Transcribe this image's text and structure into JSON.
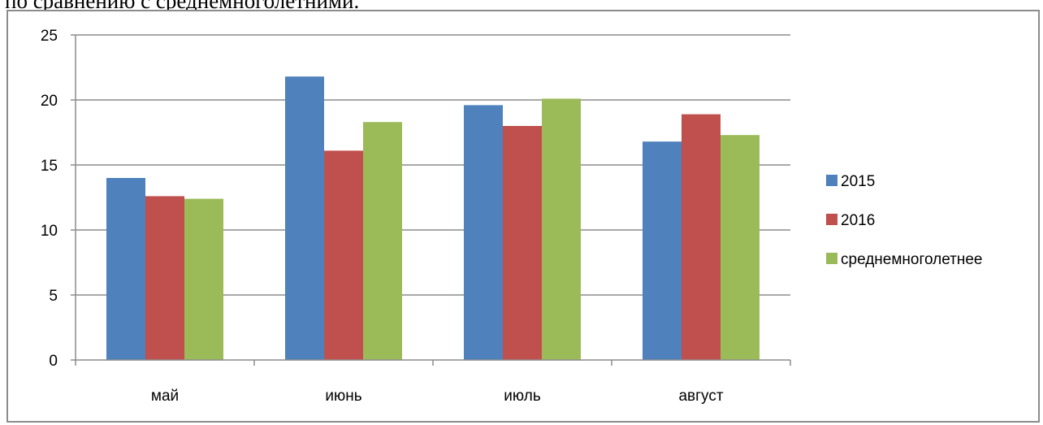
{
  "caption_fragment": "по сравнению с среднемноголетними.",
  "chart_data": {
    "type": "bar",
    "title": "",
    "xlabel": "",
    "ylabel": "",
    "categories": [
      "май",
      "июнь",
      "июль",
      "август"
    ],
    "series": [
      {
        "name": "2015",
        "color": "#4f81bd",
        "values": [
          14.0,
          21.8,
          19.6,
          16.8
        ]
      },
      {
        "name": "2016",
        "color": "#c0504d",
        "values": [
          12.6,
          16.1,
          18.0,
          18.9
        ]
      },
      {
        "name": "среднемноголетнее",
        "color": "#9bbb59",
        "values": [
          12.4,
          18.3,
          20.1,
          17.3
        ]
      }
    ],
    "ylim": [
      0,
      25
    ],
    "yticks": [
      0,
      5,
      10,
      15,
      20,
      25
    ],
    "grid": true,
    "legend": "right"
  }
}
